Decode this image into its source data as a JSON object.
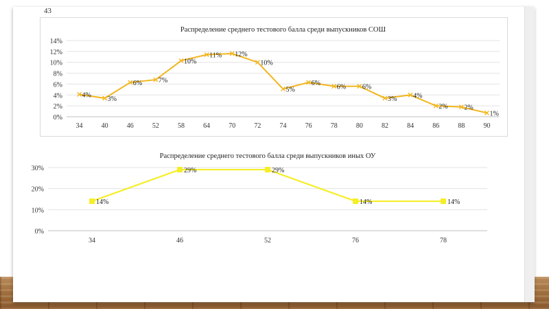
{
  "slide": {
    "page_number": "43"
  },
  "chart_data": [
    {
      "type": "line",
      "title": "Распределение среднего тестового балла среди выпускников СОШ",
      "categories": [
        "34",
        "40",
        "46",
        "52",
        "58",
        "64",
        "70",
        "72",
        "74",
        "76",
        "78",
        "80",
        "82",
        "84",
        "86",
        "88",
        "90"
      ],
      "series": [
        {
          "color": "#f2b51d",
          "marker": "x",
          "values": [
            4.1,
            3.4,
            6.3,
            6.8,
            10.3,
            11.4,
            11.6,
            10.0,
            5.1,
            6.3,
            5.6,
            5.6,
            3.4,
            4.0,
            2.0,
            1.8,
            0.7
          ],
          "labels": [
            "4%",
            "3%",
            "6%",
            "7%",
            "10%",
            "11%",
            "12%",
            "10%",
            "5%",
            "6%",
            "6%",
            "6%",
            "3%",
            "4%",
            "2%",
            "2%",
            "1%"
          ]
        }
      ],
      "yticks": [
        "0%",
        "2%",
        "4%",
        "6%",
        "8%",
        "10%",
        "12%",
        "14%"
      ],
      "ylim": [
        0,
        14
      ],
      "grid": true,
      "legend": "none"
    },
    {
      "type": "line",
      "title": "Распределение среднего тестового балла среди выпускников иных ОУ",
      "categories": [
        "34",
        "46",
        "52",
        "76",
        "78"
      ],
      "series": [
        {
          "color": "#f5ee28",
          "marker": "square",
          "values": [
            14,
            29,
            29,
            14,
            14
          ],
          "labels": [
            "14%",
            "29%",
            "29%",
            "14%",
            "14%"
          ]
        }
      ],
      "yticks": [
        "0%",
        "10%",
        "20%",
        "30%"
      ],
      "ylim": [
        0,
        30
      ],
      "grid": true,
      "legend": "none"
    }
  ]
}
